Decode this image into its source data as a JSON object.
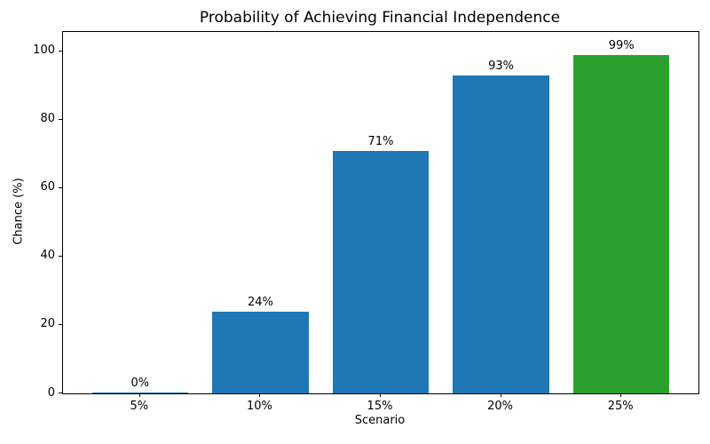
{
  "chart_data": {
    "type": "bar",
    "title": "Probability of Achieving Financial Independence",
    "xlabel": "Scenario",
    "ylabel": "Chance (%)",
    "categories": [
      "5%",
      "10%",
      "15%",
      "20%",
      "25%"
    ],
    "values": [
      0,
      24,
      71,
      93,
      99
    ],
    "bar_labels": [
      "0%",
      "24%",
      "71%",
      "93%",
      "99%"
    ],
    "bar_colors": [
      "#1f77b4",
      "#1f77b4",
      "#1f77b4",
      "#1f77b4",
      "#2ca02c"
    ],
    "yticks": [
      0,
      20,
      40,
      60,
      80,
      100
    ],
    "ylim": [
      0,
      105.7
    ],
    "grid": false,
    "legend": "none"
  }
}
